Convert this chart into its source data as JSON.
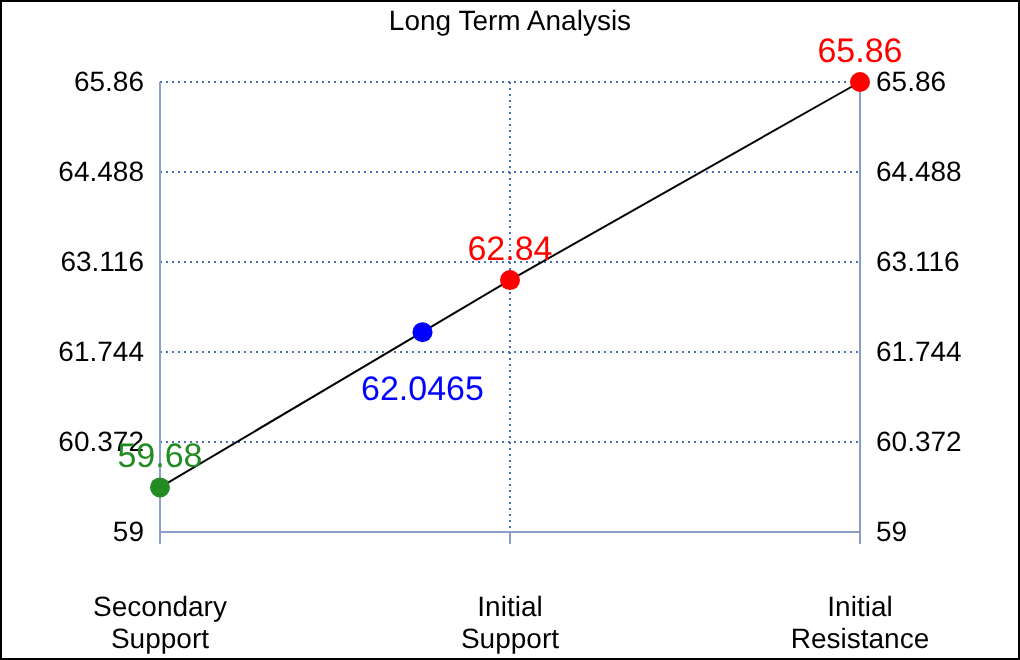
{
  "chart_data": {
    "type": "line",
    "title": "Long Term Analysis",
    "categories": [
      "Secondary Support",
      null,
      null,
      null,
      "Initial Support",
      null,
      null,
      null,
      "Initial Resistance"
    ],
    "ylim": [
      59,
      65.86
    ],
    "yticks": [
      59,
      60.372,
      61.744,
      63.116,
      64.488,
      65.86
    ],
    "y2lim": [
      59,
      65.86
    ],
    "y2ticks": [
      59,
      60.372,
      61.744,
      63.116,
      64.488,
      65.86
    ],
    "grid": true,
    "series": [
      {
        "color": "#000000",
        "x": [
          "Secondary Support",
          "Initial Support",
          "Initial Resistance"
        ],
        "values": [
          59.68,
          62.84,
          65.86
        ]
      },
      {
        "type": "scatter",
        "values": [
          59.68,
          null,
          null,
          62.0465,
          62.84,
          null,
          null,
          null,
          65.86
        ],
        "colors": [
          "#228b22",
          null,
          null,
          "#0000ff",
          "#ff0000",
          null,
          null,
          null,
          "#ff0000"
        ],
        "value_labels": [
          "59.68",
          null,
          null,
          "62.0465",
          "62.84",
          null,
          null,
          null,
          "65.86"
        ]
      }
    ]
  }
}
